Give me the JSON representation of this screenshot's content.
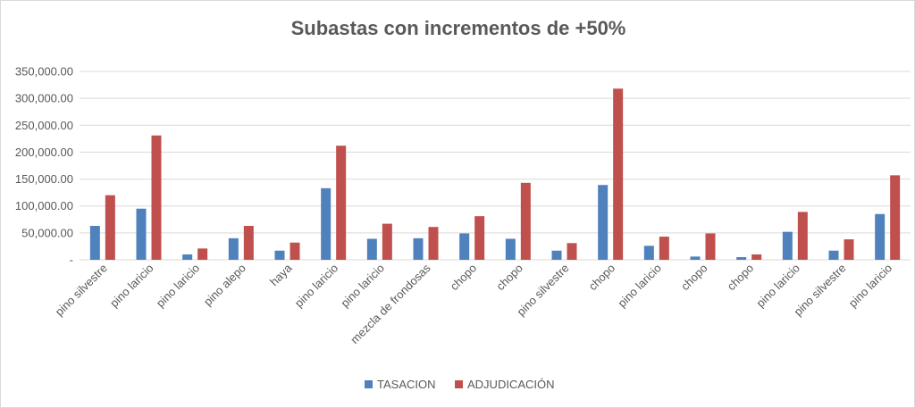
{
  "chart_data": {
    "type": "bar",
    "title": "Subastas con incrementos de +50%",
    "categories": [
      "pino silvestre",
      "pino laricio",
      "pino laricio",
      "pino alepo",
      "haya",
      "pino laricio",
      "pino laricio",
      "mezcla de frondosas",
      "chopo",
      "chopo",
      "pino silvestre",
      "chopo",
      "pino laricio",
      "chopo",
      "chopo",
      "pino laricio",
      "pino silvestre",
      "pino laricio"
    ],
    "series": [
      {
        "name": "TASACION",
        "color": "#4f81bd",
        "values": [
          63000,
          95000,
          10000,
          40000,
          17000,
          133000,
          39000,
          40000,
          49000,
          39000,
          17000,
          139000,
          26000,
          6000,
          5000,
          52000,
          17000,
          85000
        ]
      },
      {
        "name": "ADJUDICACIÓN",
        "color": "#c0504d",
        "values": [
          120000,
          231000,
          21000,
          63000,
          32000,
          212000,
          67000,
          61000,
          81000,
          143000,
          31000,
          318000,
          43000,
          49000,
          10000,
          89000,
          38000,
          157000
        ]
      }
    ],
    "yticks": [
      "-",
      "50,000.00",
      "100,000.00",
      "150,000.00",
      "200,000.00",
      "250,000.00",
      "300,000.00",
      "350,000.00"
    ],
    "ylim": [
      0,
      350000
    ],
    "grid": true,
    "legend_position": "bottom"
  }
}
